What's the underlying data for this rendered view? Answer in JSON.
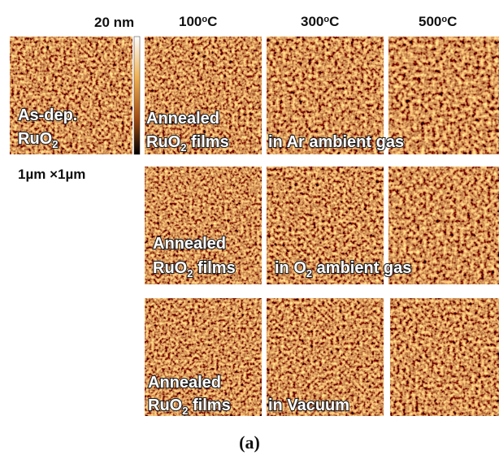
{
  "scale_bar": {
    "label": "20 nm"
  },
  "columns": [
    {
      "temperature": "100",
      "degree": "o",
      "unit": "C"
    },
    {
      "temperature": "300",
      "degree": "o",
      "unit": "C"
    },
    {
      "temperature": "500",
      "degree": "o",
      "unit": "C"
    }
  ],
  "scan_size": "1µm ×1µm",
  "as_deposited": {
    "line1": "As-dep.",
    "formula": "RuO",
    "subscript": "2"
  },
  "rows": [
    {
      "line1": "Annealed",
      "formula": "RuO",
      "subscript": "2",
      "films": " films",
      "ambient": "in Ar ambient gas"
    },
    {
      "line1": "Annealed",
      "formula": "RuO",
      "subscript": "2",
      "films": " films",
      "ambient_prefix": "in O",
      "ambient_subscript": "2",
      "ambient_suffix": " ambient gas"
    },
    {
      "line1": "Annealed",
      "formula": "RuO",
      "subscript": "2",
      "films": " films",
      "ambient": "in Vacuum"
    }
  ],
  "caption": "(a)"
}
